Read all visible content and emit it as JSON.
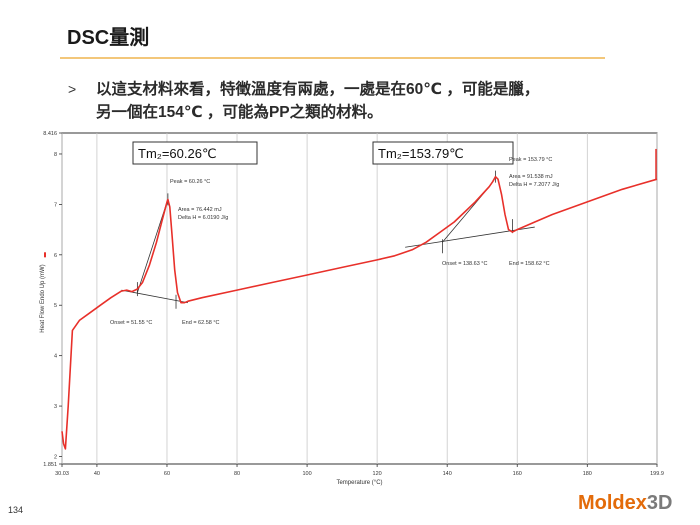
{
  "slide": {
    "title": "DSC量測",
    "bullet_mark": ">",
    "bullet_line1": "以這支材料來看，特徵溫度有兩處，一處是在60℃ ，可能是臘，",
    "bullet_line2": "另一個在154℃ ，可能為PP之類的材料。",
    "page_number": "134",
    "logo_part1": "Moldex",
    "logo_part2": "3D",
    "accent_color": "#f3c77a"
  },
  "chart_data": {
    "type": "line",
    "xlabel": "Temperature (°C)",
    "ylabel": "Heat Flow Endo Up (mW)",
    "xlim": [
      30.03,
      199.9
    ],
    "ylim": [
      1.851,
      8.416
    ],
    "x_ticks": [
      "30.03",
      "40",
      "60",
      "80",
      "100",
      "120",
      "140",
      "160",
      "180",
      "199.9"
    ],
    "y_ticks": [
      "1.851",
      "2",
      "3",
      "4",
      "5",
      "6",
      "7",
      "8",
      "8.416"
    ],
    "line_color": "#e8302a",
    "series": [
      {
        "x": [
          30.03,
          30.5,
          31.0,
          31.8,
          33,
          35,
          38,
          41,
          44,
          47,
          48.5,
          50,
          51.5,
          53,
          55,
          57,
          58.5,
          60,
          60.26,
          60.8,
          61.5,
          62.2,
          63,
          64,
          65,
          66,
          70,
          80,
          90,
          100,
          110,
          120,
          125,
          130,
          134,
          138,
          142,
          145,
          148,
          150,
          152,
          153,
          153.79,
          154.5,
          155.5,
          156.5,
          157.5,
          158.62,
          160,
          165,
          170,
          180,
          190,
          199.9
        ],
        "y": [
          2.5,
          2.25,
          2.15,
          3.0,
          4.5,
          4.7,
          4.85,
          5.0,
          5.15,
          5.28,
          5.3,
          5.27,
          5.32,
          5.45,
          5.8,
          6.25,
          6.65,
          7.05,
          7.1,
          6.95,
          6.35,
          5.7,
          5.25,
          5.05,
          5.05,
          5.08,
          5.15,
          5.3,
          5.45,
          5.6,
          5.75,
          5.9,
          5.98,
          6.1,
          6.25,
          6.45,
          6.65,
          6.85,
          7.05,
          7.2,
          7.35,
          7.45,
          7.55,
          7.5,
          7.2,
          6.8,
          6.5,
          6.45,
          6.5,
          6.65,
          6.8,
          7.05,
          7.3,
          7.5
        ]
      }
    ],
    "peaks": [
      {
        "box_label": "Tm₂=60.26℃",
        "peak": "Peak = 60.26 °C",
        "area": "Area = 76.442 mJ",
        "delta_h": "Delta H = 6.0190 J/g",
        "onset": "Onset = 51.55 °C",
        "end": "End = 62.58 °C",
        "peak_x": 60.26,
        "peak_y": 7.1,
        "baseline": [
          [
            47,
            5.3
          ],
          [
            66,
            5.05
          ]
        ],
        "tangent": [
          [
            51.55,
            5.25
          ],
          [
            60.26,
            7.1
          ]
        ],
        "onset_x": 51.55,
        "end_x": 62.58
      },
      {
        "box_label": "Tm₂=153.79℃",
        "peak": "Peak = 153.79 °C",
        "area": "Area = 91.538 mJ",
        "delta_h": "Delta H = 7.2077 J/g",
        "onset": "Onset = 138.63 °C",
        "end": "End = 158.62 °C",
        "peak_x": 153.79,
        "peak_y": 7.55,
        "baseline": [
          [
            128,
            6.15
          ],
          [
            165,
            6.55
          ]
        ],
        "tangent": [
          [
            138.63,
            6.25
          ],
          [
            152,
            7.35
          ]
        ],
        "onset_x": 138.63,
        "end_x": 158.62
      }
    ]
  }
}
